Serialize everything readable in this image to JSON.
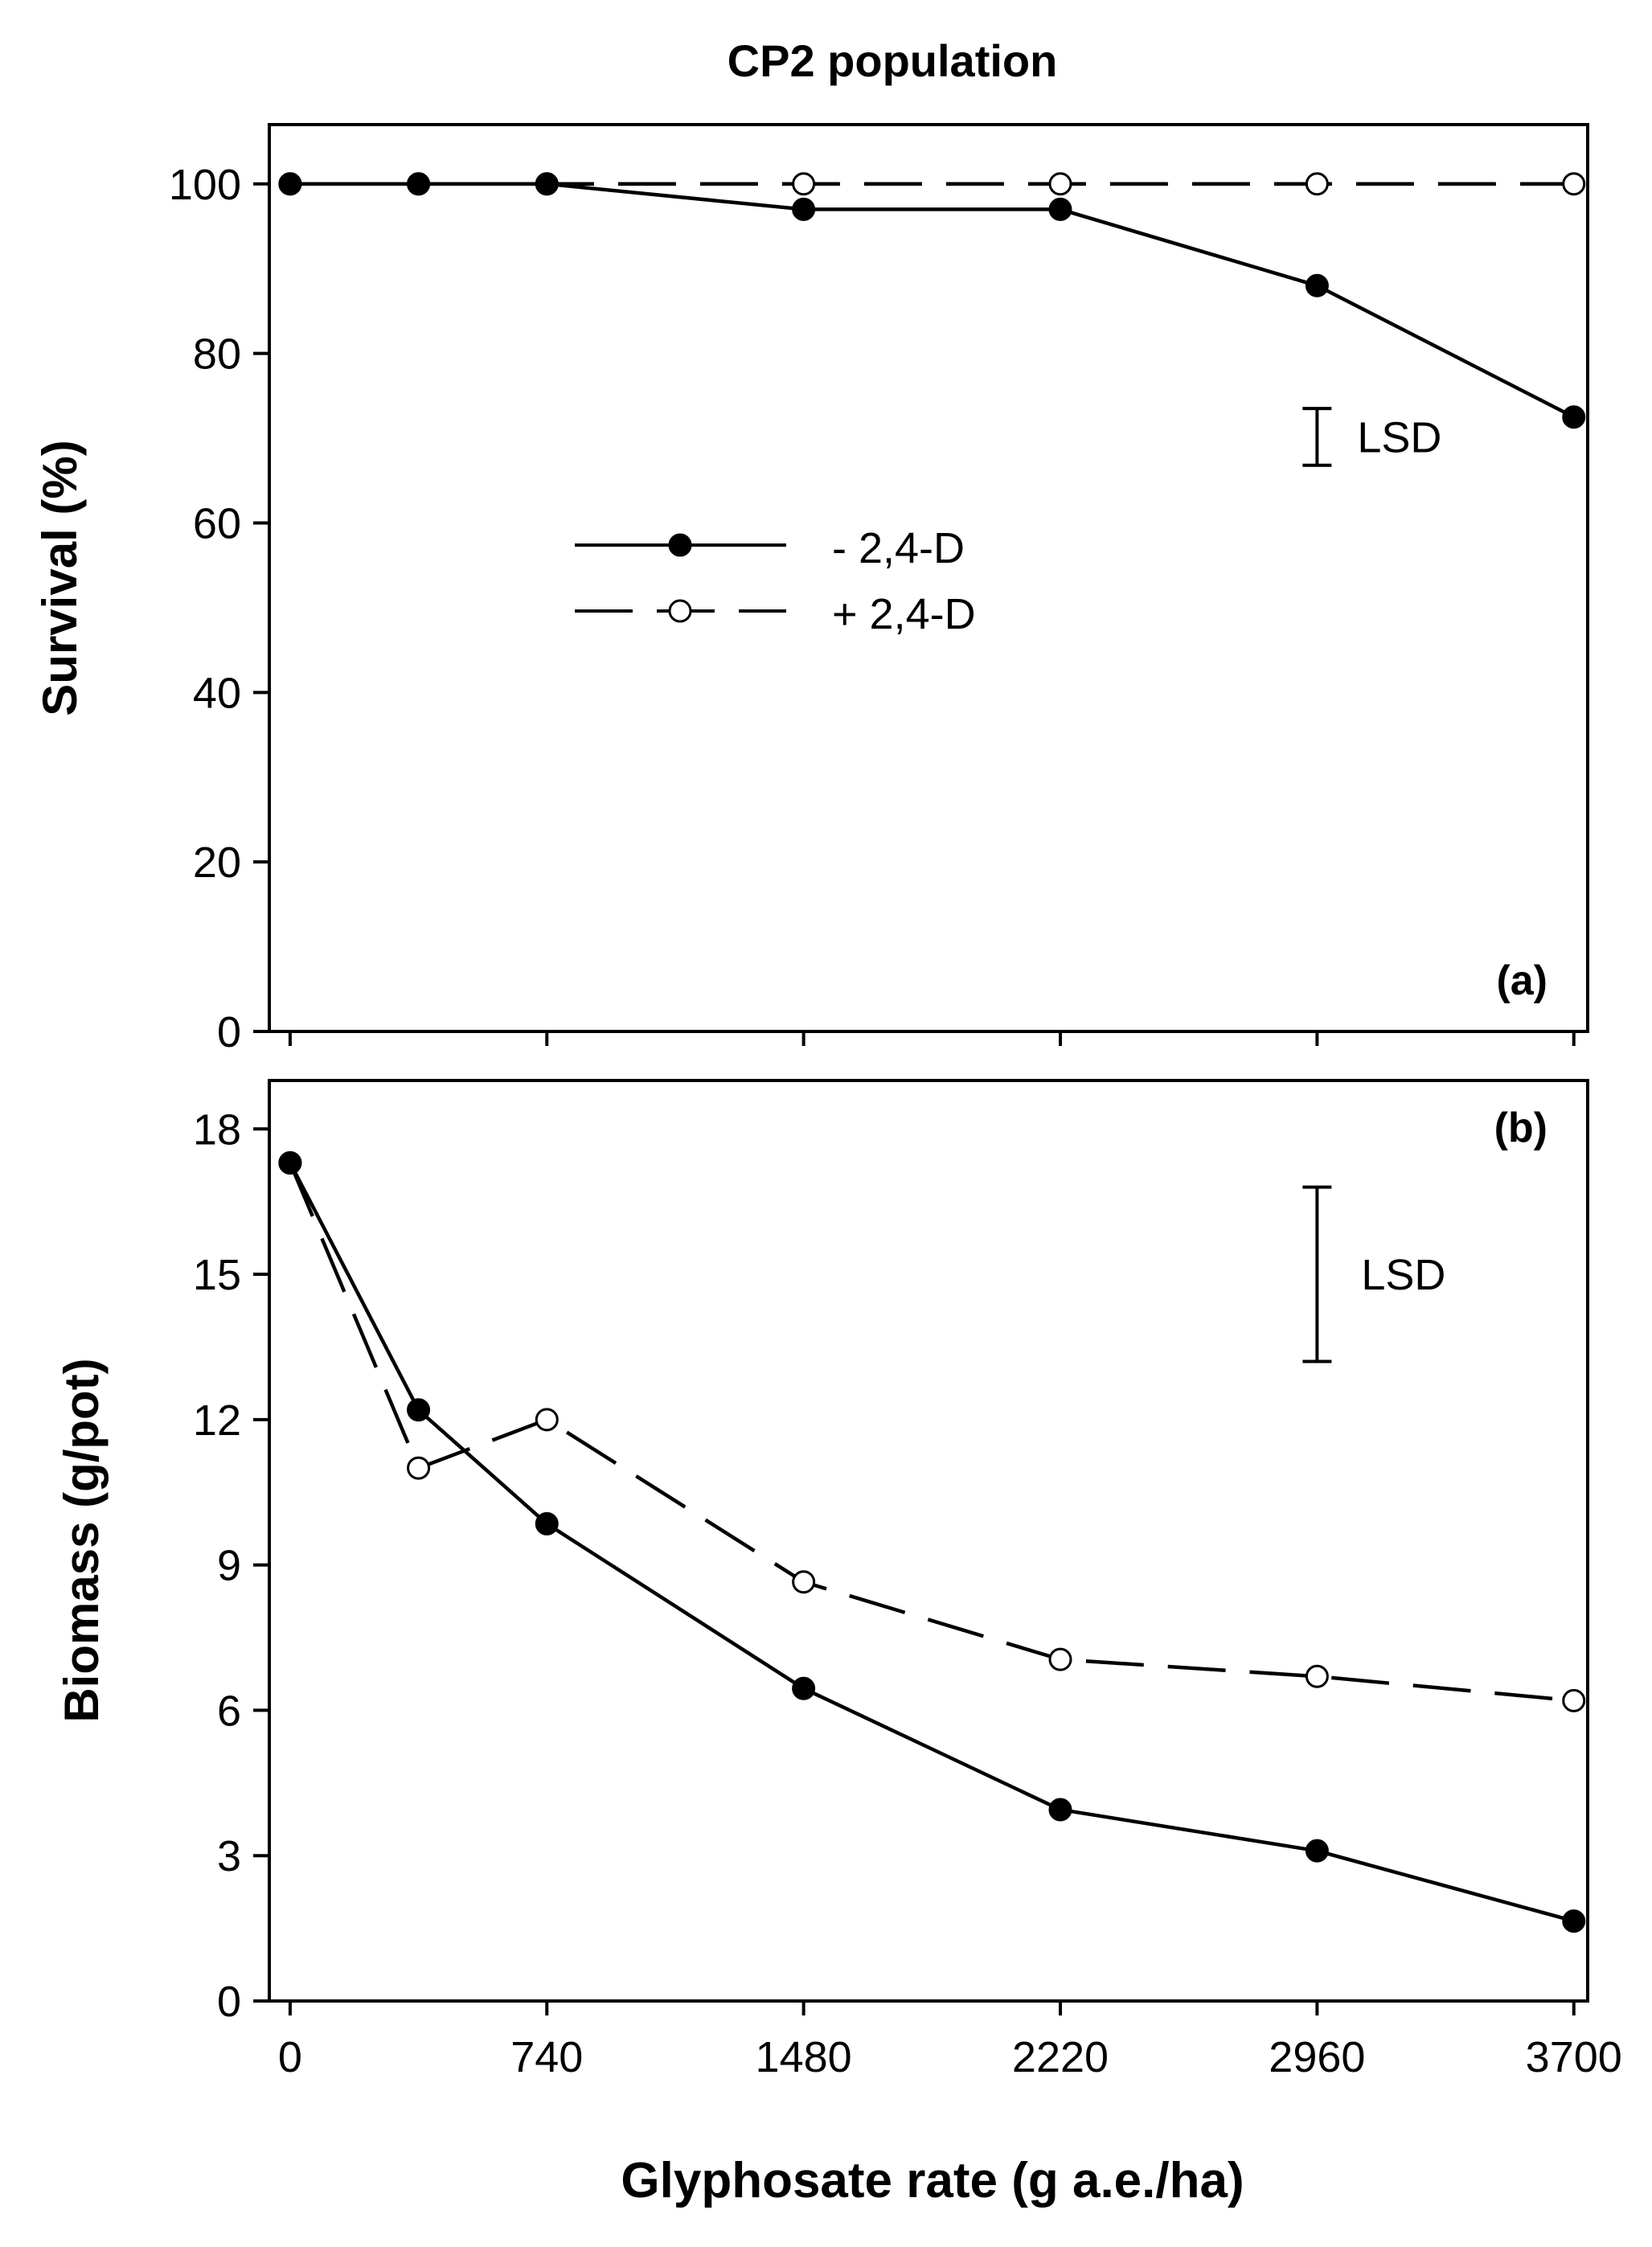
{
  "chart_data": [
    {
      "panel": "(a)",
      "type": "line",
      "title": "CP2 population",
      "ylabel": "Survival (%)",
      "xlabel": "",
      "xlim": [
        -60,
        3740
      ],
      "ylim": [
        0,
        107
      ],
      "yticks": [
        0,
        20,
        40,
        60,
        80,
        100
      ],
      "xticks": [
        0,
        740,
        1480,
        2220,
        2960,
        3700
      ],
      "series": [
        {
          "name": "- 2,4-D",
          "marker": "filled",
          "line": "solid",
          "x": [
            0,
            370,
            740,
            1480,
            2220,
            2960,
            3700
          ],
          "y": [
            100,
            100,
            100,
            97,
            97,
            88,
            72.5
          ]
        },
        {
          "name": "+ 2,4-D",
          "marker": "open",
          "line": "dashed",
          "x": [
            0,
            370,
            740,
            1480,
            2220,
            2960,
            3700
          ],
          "y": [
            100,
            100,
            100,
            100,
            100,
            100,
            100
          ]
        }
      ],
      "lsd": {
        "label": "LSD",
        "x": 2960,
        "low": 66.8,
        "high": 73.5
      },
      "legend": {
        "position": "center-left"
      }
    },
    {
      "panel": "(b)",
      "type": "line",
      "title": "",
      "ylabel": "Biomass (g/pot)",
      "xlabel": "Glyphosate rate (g a.e./ha)",
      "xlim": [
        -60,
        3740
      ],
      "ylim": [
        0,
        19
      ],
      "yticks": [
        0,
        3,
        6,
        9,
        12,
        15,
        18
      ],
      "xticks": [
        0,
        740,
        1480,
        2220,
        2960,
        3700
      ],
      "series": [
        {
          "name": "- 2,4-D",
          "marker": "filled",
          "line": "solid",
          "x": [
            0,
            370,
            740,
            1480,
            2220,
            2960,
            3700
          ],
          "y": [
            17.3,
            12.2,
            9.85,
            6.45,
            3.95,
            3.1,
            1.65
          ]
        },
        {
          "name": "+ 2,4-D",
          "marker": "open",
          "line": "dashed",
          "x": [
            0,
            370,
            740,
            1480,
            2220,
            2960,
            3700
          ],
          "y": [
            17.3,
            11.0,
            12.0,
            8.65,
            7.05,
            6.7,
            6.2
          ]
        }
      ],
      "lsd": {
        "label": "LSD",
        "x": 2960,
        "low": 13.2,
        "high": 16.8
      }
    }
  ]
}
